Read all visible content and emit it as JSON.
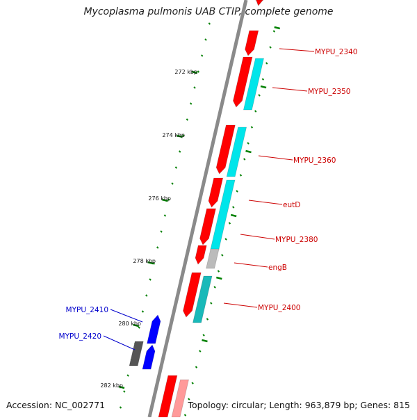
{
  "title": "Mycoplasma pulmonis UAB CTIP, complete genome",
  "footer": {
    "accession": "Accession: NC_002771",
    "stats": "Topology: circular; Length: 963,879 bp; Genes: 815"
  },
  "colors": {
    "forward": "#ff0000",
    "forward_light": "#ff9a9a",
    "cds_cyan": "#00e5ea",
    "cds_teal": "#19b9b9",
    "rna_grey": "#bbbbbb",
    "reverse_blue": "#0000ff",
    "reverse_grey": "#555555",
    "ticks": "#008000",
    "label_red": "#cc0000",
    "label_blue": "#0000cc"
  },
  "scale_labels": [
    "272 kbp",
    "274 kbp",
    "276 kbp",
    "278 kbp",
    "280 kbp",
    "282 kbp"
  ],
  "genes": [
    {
      "label": "MYPU_2340",
      "strand": "forward",
      "color": "#cc0000"
    },
    {
      "label": "MYPU_2350",
      "strand": "forward",
      "color": "#cc0000"
    },
    {
      "label": "MYPU_2360",
      "strand": "forward",
      "color": "#cc0000"
    },
    {
      "label": "eutD",
      "strand": "forward",
      "color": "#cc0000"
    },
    {
      "label": "MYPU_2380",
      "strand": "forward",
      "color": "#cc0000"
    },
    {
      "label": "engB",
      "strand": "forward",
      "color": "#cc0000"
    },
    {
      "label": "MYPU_2400",
      "strand": "forward",
      "color": "#cc0000"
    },
    {
      "label": "MYPU_2410",
      "strand": "reverse",
      "color": "#0000cc"
    },
    {
      "label": "MYPU_2420",
      "strand": "reverse",
      "color": "#0000cc"
    }
  ]
}
